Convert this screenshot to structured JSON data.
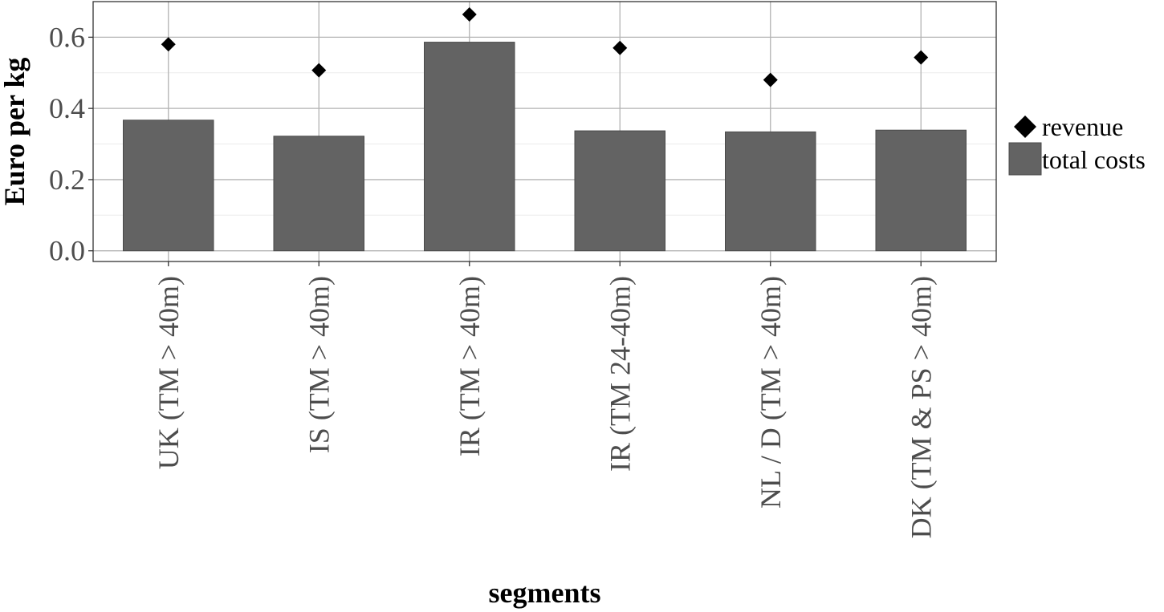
{
  "chart_data": {
    "type": "bar",
    "xlabel": "segments",
    "ylabel": "Euro per kg",
    "ylim": [
      -0.03,
      0.7
    ],
    "yticks": [
      0.0,
      0.2,
      0.4,
      0.6
    ],
    "ytick_labels": [
      "0.0",
      "0.2",
      "0.4",
      "0.6"
    ],
    "categories": [
      "UK (TM > 40m)",
      "IS (TM > 40m)",
      "IR (TM > 40m)",
      "IR (TM 24-40m)",
      "NL / D (TM > 40m)",
      "DK (TM & PS > 40m)"
    ],
    "series": [
      {
        "name": "total costs",
        "kind": "bar",
        "color": "#636363",
        "values": [
          0.367,
          0.322,
          0.586,
          0.337,
          0.334,
          0.339
        ]
      },
      {
        "name": "revenue",
        "kind": "point",
        "shape": "diamond",
        "color": "#000000",
        "values": [
          0.58,
          0.507,
          0.664,
          0.57,
          0.48,
          0.543
        ]
      }
    ],
    "legend": {
      "position": "right",
      "entries": [
        {
          "label": "revenue",
          "symbol": "diamond"
        },
        {
          "label": "total costs",
          "symbol": "box"
        }
      ]
    },
    "grid": true,
    "background": "#ffffff"
  }
}
